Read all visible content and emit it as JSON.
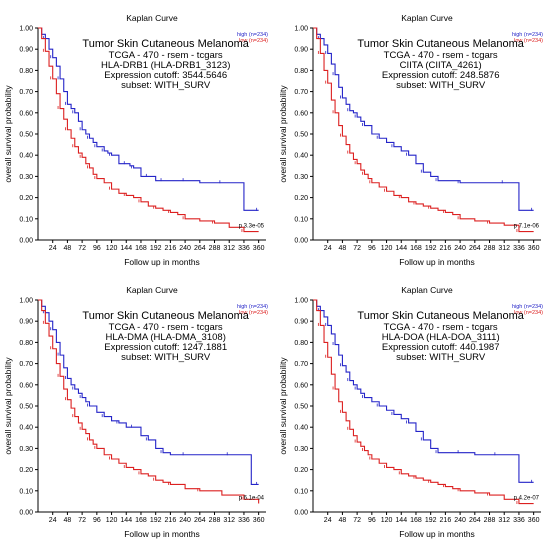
{
  "chart_data": [
    {
      "type": "line",
      "title": "Kaplan Curve",
      "subtitle_lines": [
        "Tumor Skin Cutaneous Melanoma",
        "TCGA - 470 - rsem - tcgars",
        "HLA-DRB1 (HLA-DRB1_3123)",
        "Expression cutoff: 3544.5646",
        "subset: WITH_SURV"
      ],
      "xlabel": "Follow up in months",
      "ylabel": "overall survival probability",
      "xlim": [
        0,
        372
      ],
      "ylim": [
        0,
        1
      ],
      "x_ticks": [
        24,
        48,
        72,
        96,
        120,
        144,
        168,
        192,
        216,
        240,
        264,
        288,
        312,
        336,
        360
      ],
      "y_ticks": [
        0,
        0.1,
        0.2,
        0.3,
        0.4,
        0.5,
        0.6,
        0.7,
        0.8,
        0.9,
        1
      ],
      "legend_position": "top-right",
      "pvalue": "p 3.3e-05",
      "grid": false,
      "series": [
        {
          "name": "high (n=234)",
          "color": "#2424c8",
          "x": [
            0,
            6,
            12,
            18,
            24,
            30,
            36,
            42,
            48,
            54,
            60,
            66,
            72,
            78,
            84,
            90,
            96,
            102,
            108,
            114,
            120,
            132,
            144,
            150,
            156,
            168,
            180,
            192,
            204,
            216,
            240,
            264,
            300,
            336,
            360
          ],
          "y": [
            1,
            0.97,
            0.95,
            0.9,
            0.86,
            0.82,
            0.76,
            0.7,
            0.64,
            0.62,
            0.6,
            0.56,
            0.52,
            0.5,
            0.48,
            0.46,
            0.44,
            0.44,
            0.42,
            0.41,
            0.4,
            0.36,
            0.36,
            0.35,
            0.34,
            0.3,
            0.3,
            0.28,
            0.28,
            0.28,
            0.28,
            0.27,
            0.27,
            0.14,
            0.14
          ]
        },
        {
          "name": "low (n=234)",
          "color": "#dc2020",
          "x": [
            0,
            6,
            12,
            18,
            24,
            30,
            36,
            42,
            48,
            54,
            60,
            66,
            72,
            78,
            84,
            90,
            96,
            108,
            120,
            132,
            144,
            156,
            168,
            180,
            192,
            204,
            216,
            228,
            240,
            264,
            288,
            312,
            336,
            360
          ],
          "y": [
            1,
            0.95,
            0.89,
            0.82,
            0.76,
            0.69,
            0.62,
            0.57,
            0.52,
            0.48,
            0.44,
            0.41,
            0.39,
            0.36,
            0.34,
            0.31,
            0.29,
            0.27,
            0.24,
            0.22,
            0.21,
            0.2,
            0.18,
            0.16,
            0.15,
            0.14,
            0.13,
            0.12,
            0.1,
            0.09,
            0.08,
            0.06,
            0.04,
            0.04
          ]
        }
      ]
    },
    {
      "type": "line",
      "title": "Kaplan Curve",
      "subtitle_lines": [
        "Tumor Skin Cutaneous Melanoma",
        "TCGA - 470 - rsem - tcgars",
        "CIITA (CIITA_4261)",
        "Expression cutoff: 248.5876",
        "subset: WITH_SURV"
      ],
      "xlabel": "Follow up in months",
      "ylabel": "overall survival probability",
      "xlim": [
        0,
        372
      ],
      "ylim": [
        0,
        1
      ],
      "x_ticks": [
        24,
        48,
        72,
        96,
        120,
        144,
        168,
        192,
        216,
        240,
        264,
        288,
        312,
        336,
        360
      ],
      "y_ticks": [
        0,
        0.1,
        0.2,
        0.3,
        0.4,
        0.5,
        0.6,
        0.7,
        0.8,
        0.9,
        1
      ],
      "legend_position": "top-right",
      "pvalue": "p 7.1e-06",
      "grid": false,
      "series": [
        {
          "name": "high (n=234)",
          "color": "#2424c8",
          "x": [
            0,
            6,
            12,
            18,
            24,
            30,
            36,
            42,
            48,
            54,
            60,
            66,
            72,
            78,
            84,
            96,
            108,
            120,
            132,
            144,
            156,
            168,
            180,
            192,
            204,
            216,
            240,
            276,
            312,
            336,
            360
          ],
          "y": [
            1,
            0.97,
            0.95,
            0.92,
            0.88,
            0.83,
            0.78,
            0.72,
            0.67,
            0.64,
            0.61,
            0.6,
            0.58,
            0.56,
            0.54,
            0.5,
            0.48,
            0.46,
            0.44,
            0.42,
            0.4,
            0.36,
            0.32,
            0.3,
            0.28,
            0.28,
            0.27,
            0.27,
            0.27,
            0.14,
            0.14
          ]
        },
        {
          "name": "low (n=234)",
          "color": "#dc2020",
          "x": [
            0,
            6,
            12,
            18,
            24,
            30,
            36,
            42,
            48,
            54,
            60,
            66,
            72,
            78,
            84,
            90,
            96,
            108,
            120,
            132,
            144,
            156,
            168,
            180,
            192,
            204,
            216,
            228,
            240,
            264,
            288,
            312,
            336,
            360
          ],
          "y": [
            1,
            0.95,
            0.88,
            0.8,
            0.74,
            0.66,
            0.6,
            0.54,
            0.49,
            0.45,
            0.41,
            0.38,
            0.36,
            0.33,
            0.31,
            0.29,
            0.27,
            0.25,
            0.23,
            0.21,
            0.2,
            0.18,
            0.17,
            0.16,
            0.15,
            0.14,
            0.13,
            0.12,
            0.1,
            0.09,
            0.08,
            0.07,
            0.04,
            0.04
          ]
        }
      ]
    },
    {
      "type": "line",
      "title": "Kaplan Curve",
      "subtitle_lines": [
        "Tumor Skin Cutaneous Melanoma",
        "TCGA - 470 - rsem - tcgars",
        "HLA-DMA (HLA-DMA_3108)",
        "Expression cutoff: 1247.1881",
        "subset: WITH_SURV"
      ],
      "xlabel": "Follow up in months",
      "ylabel": "overall survival probability",
      "xlim": [
        0,
        372
      ],
      "ylim": [
        0,
        1
      ],
      "x_ticks": [
        24,
        48,
        72,
        96,
        120,
        144,
        168,
        192,
        216,
        240,
        264,
        288,
        312,
        336,
        360
      ],
      "y_ticks": [
        0,
        0.1,
        0.2,
        0.3,
        0.4,
        0.5,
        0.6,
        0.7,
        0.8,
        0.9,
        1
      ],
      "legend_position": "top-right",
      "pvalue": "p 6.1e-04",
      "grid": false,
      "series": [
        {
          "name": "high (n=234)",
          "color": "#2424c8",
          "x": [
            0,
            6,
            12,
            18,
            24,
            30,
            36,
            42,
            48,
            54,
            60,
            66,
            72,
            78,
            84,
            96,
            108,
            120,
            132,
            144,
            156,
            168,
            180,
            192,
            204,
            216,
            240,
            276,
            312,
            348,
            360
          ],
          "y": [
            1,
            0.97,
            0.94,
            0.9,
            0.86,
            0.8,
            0.74,
            0.68,
            0.63,
            0.6,
            0.58,
            0.56,
            0.54,
            0.52,
            0.5,
            0.47,
            0.45,
            0.43,
            0.42,
            0.4,
            0.4,
            0.36,
            0.34,
            0.3,
            0.28,
            0.27,
            0.27,
            0.27,
            0.27,
            0.13,
            0.13
          ]
        },
        {
          "name": "low (n=234)",
          "color": "#dc2020",
          "x": [
            0,
            6,
            12,
            18,
            24,
            30,
            36,
            42,
            48,
            54,
            60,
            66,
            72,
            78,
            84,
            90,
            96,
            108,
            120,
            132,
            144,
            156,
            168,
            180,
            192,
            204,
            216,
            240,
            264,
            300,
            336,
            360
          ],
          "y": [
            1,
            0.95,
            0.89,
            0.83,
            0.77,
            0.7,
            0.64,
            0.58,
            0.53,
            0.49,
            0.45,
            0.42,
            0.39,
            0.37,
            0.34,
            0.32,
            0.3,
            0.27,
            0.25,
            0.23,
            0.21,
            0.2,
            0.18,
            0.17,
            0.15,
            0.14,
            0.13,
            0.11,
            0.1,
            0.08,
            0.06,
            0.04
          ]
        }
      ]
    },
    {
      "type": "line",
      "title": "Kaplan Curve",
      "subtitle_lines": [
        "Tumor Skin Cutaneous Melanoma",
        "TCGA - 470 - rsem - tcgars",
        "HLA-DOA (HLA-DOA_3111)",
        "Expression cutoff: 440.1987",
        "subset: WITH_SURV"
      ],
      "xlabel": "Follow up in months",
      "ylabel": "overall survival probability",
      "xlim": [
        0,
        372
      ],
      "ylim": [
        0,
        1
      ],
      "x_ticks": [
        24,
        48,
        72,
        96,
        120,
        144,
        168,
        192,
        216,
        240,
        264,
        288,
        312,
        336,
        360
      ],
      "y_ticks": [
        0,
        0.1,
        0.2,
        0.3,
        0.4,
        0.5,
        0.6,
        0.7,
        0.8,
        0.9,
        1
      ],
      "legend_position": "top-right",
      "pvalue": "p 4.2e-07",
      "grid": false,
      "series": [
        {
          "name": "high (n=234)",
          "color": "#2424c8",
          "x": [
            0,
            6,
            12,
            18,
            24,
            30,
            36,
            42,
            48,
            54,
            60,
            66,
            72,
            78,
            84,
            96,
            108,
            120,
            132,
            144,
            156,
            168,
            180,
            192,
            204,
            216,
            240,
            264,
            300,
            336,
            360
          ],
          "y": [
            1,
            0.97,
            0.95,
            0.92,
            0.88,
            0.84,
            0.79,
            0.74,
            0.69,
            0.66,
            0.62,
            0.6,
            0.58,
            0.56,
            0.54,
            0.52,
            0.5,
            0.48,
            0.46,
            0.44,
            0.42,
            0.38,
            0.34,
            0.3,
            0.28,
            0.28,
            0.28,
            0.27,
            0.27,
            0.14,
            0.14
          ]
        },
        {
          "name": "low (n=234)",
          "color": "#dc2020",
          "x": [
            0,
            6,
            12,
            18,
            24,
            30,
            36,
            42,
            48,
            54,
            60,
            66,
            72,
            78,
            84,
            90,
            96,
            108,
            120,
            132,
            144,
            156,
            168,
            180,
            192,
            204,
            216,
            228,
            240,
            264,
            288,
            312,
            336,
            360
          ],
          "y": [
            1,
            0.95,
            0.88,
            0.8,
            0.73,
            0.65,
            0.58,
            0.52,
            0.47,
            0.43,
            0.39,
            0.36,
            0.33,
            0.31,
            0.29,
            0.27,
            0.25,
            0.23,
            0.21,
            0.2,
            0.18,
            0.17,
            0.16,
            0.15,
            0.14,
            0.13,
            0.12,
            0.11,
            0.1,
            0.09,
            0.08,
            0.06,
            0.04,
            0.04
          ]
        }
      ]
    }
  ]
}
